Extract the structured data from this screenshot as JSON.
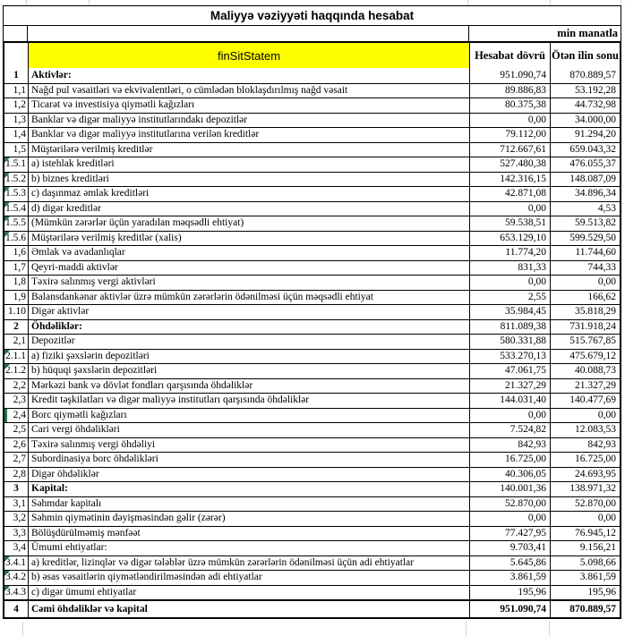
{
  "title": "Maliyyə vəziyyəti haqqında hesabat",
  "unit_note": "min manatla",
  "colors": {
    "header_fill": "#ffff00",
    "comment_marker_green": "#217346"
  },
  "table": {
    "header": {
      "name_column": "finSitStatem",
      "current_period": "Hesabat dövrü",
      "previous_period": "Ötən ilin sonu"
    },
    "rows": [
      {
        "id": "1",
        "label": "Aktivlər:",
        "current": "951.090,74",
        "previous": "870.889,57",
        "style": "section"
      },
      {
        "id": "1,1",
        "label": "Nağd pul vəsaitləri və ekvivalentləri, o cümlədən bloklaşdırılmış nağd vəsait",
        "current": "89.886,83",
        "previous": "53.192,28"
      },
      {
        "id": "1,2",
        "label": "Ticarət və investisiya qiymətli kağızları",
        "current": "80.375,38",
        "previous": "44.732,98"
      },
      {
        "id": "1,3",
        "label": "Banklar və digər maliyyə institutlarındakı depozitlər",
        "current": "0,00",
        "previous": "34.000,00"
      },
      {
        "id": "1,4",
        "label": "Banklar və digər maliyyə institutlarına verilən kreditlər",
        "current": "79.112,00",
        "previous": "91.294,20"
      },
      {
        "id": "1,5",
        "label": "Müştərilərə verilmiş kreditlər",
        "current": "712.667,61",
        "previous": "659.043,32"
      },
      {
        "id": "1.5.1",
        "label": "a) istehlak kreditləri",
        "current": "527.480,38",
        "previous": "476.055,37",
        "marker": "triangle"
      },
      {
        "id": "1.5.2",
        "label": "b) biznes kreditləri",
        "current": "142.316,15",
        "previous": "148.087,09",
        "marker": "triangle"
      },
      {
        "id": "1.5.3",
        "label": "c) daşınmaz əmlak kreditləri",
        "current": "42.871,08",
        "previous": "34.896,34",
        "marker": "triangle"
      },
      {
        "id": "1.5.4",
        "label": "d) digər kreditlər",
        "current": "0,00",
        "previous": "4,53",
        "marker": "triangle"
      },
      {
        "id": "1.5.5",
        "label": "(Mümkün zərərlər üçün yaradılan məqsədli ehtiyat)",
        "current": "59.538,51",
        "previous": "59.513,82",
        "marker": "triangle"
      },
      {
        "id": "1.5.6",
        "label": "Müştərilərə verilmiş kreditlər (xalis)",
        "current": "653.129,10",
        "previous": "599.529,50",
        "marker": "triangle"
      },
      {
        "id": "1,6",
        "label": "Əmlak və avadanlıqlar",
        "current": "11.774,20",
        "previous": "11.744,60"
      },
      {
        "id": "1,7",
        "label": "Qeyri-maddi aktivlər",
        "current": "831,33",
        "previous": "744,33"
      },
      {
        "id": "1,8",
        "label": "Təxirə salınmış vergi aktivləri",
        "current": "0,00",
        "previous": "0,00"
      },
      {
        "id": "1,9",
        "label": "Balansdankənar aktivlər üzrə mümkün zərərlərin ödənilməsi üçün məqsədli ehtiyat",
        "current": "2,55",
        "previous": "166,62"
      },
      {
        "id": "1.10",
        "label": "Digər aktivlər",
        "current": "35.984,45",
        "previous": "35.818,29"
      },
      {
        "id": "2",
        "label": "Öhdəliklər:",
        "current": "811.089,38",
        "previous": "731.918,24",
        "style": "section"
      },
      {
        "id": "2,1",
        "label": "Depozitlər",
        "current": "580.331,88",
        "previous": "515.767,85"
      },
      {
        "id": "2.1.1",
        "label": "a) fiziki şəxslərin depozitləri",
        "current": "533.270,13",
        "previous": "475.679,12",
        "marker": "triangle"
      },
      {
        "id": "2.1.2",
        "label": "b) hüquqi şəxslərin depozitləri",
        "current": "47.061,75",
        "previous": "40.088,73",
        "marker": "triangle"
      },
      {
        "id": "2,2",
        "label": "Mərkəzi bank və dövlət fondları qarşısında öhdəliklər",
        "current": "21.327,29",
        "previous": "21.327,29"
      },
      {
        "id": "2,3",
        "label": "Kredit təşkilatları və digər maliyyə institutları qarşısında öhdəliklər",
        "current": "144.031,40",
        "previous": "140.477,69"
      },
      {
        "id": "2,4",
        "label": "Borc qiymətli kağızları",
        "current": "0,00",
        "previous": "0,00",
        "marker": "bar"
      },
      {
        "id": "2,5",
        "label": "Cari vergi öhdəlikləri",
        "current": "7.524,82",
        "previous": "12.083,53"
      },
      {
        "id": "2,6",
        "label": "Təxirə salınmış vergi öhdəliyi",
        "current": "842,93",
        "previous": "842,93"
      },
      {
        "id": "2,7",
        "label": "Subordinasiya borc öhdəlikləri",
        "current": "16.725,00",
        "previous": "16.725,00"
      },
      {
        "id": "2,8",
        "label": "Digər öhdəliklər",
        "current": "40.306,05",
        "previous": "24.693,95"
      },
      {
        "id": "3",
        "label": "Kapital:",
        "current": "140.001,36",
        "previous": "138.971,32",
        "style": "section"
      },
      {
        "id": "3,1",
        "label": "Səhmdar kapitalı",
        "current": "52.870,00",
        "previous": "52.870,00"
      },
      {
        "id": "3,2",
        "label": "Səhmin qiymətinin dəyişməsindən gəlir (zərər)",
        "current": "0,00",
        "previous": "0,00"
      },
      {
        "id": "3,3",
        "label": "Bölüşdürülməmiş mənfəət",
        "current": "77.427,95",
        "previous": "76.945,12"
      },
      {
        "id": "3,4",
        "label": "Ümumi ehtiyatlar:",
        "current": "9.703,41",
        "previous": "9.156,21"
      },
      {
        "id": "3.4.1",
        "label": "a) kreditlər, lizinqlər və digər tələblər üzrə mümkün zərərlərin ödənilməsi üçün adi ehtiyatlar",
        "current": "5.645,86",
        "previous": "5.098,66",
        "marker": "triangle"
      },
      {
        "id": "3.4.2",
        "label": "b) əsas vəsaitlərin qiymətləndirilməsindən adi ehtiyatlar",
        "current": "3.861,59",
        "previous": "3.861,59",
        "marker": "triangle"
      },
      {
        "id": "3.4.3",
        "label": "c) digər ümumi ehtiyatlar",
        "current": "195,96",
        "previous": "195,96",
        "marker": "triangle"
      },
      {
        "id": "4",
        "label": "Cəmi öhdəliklər və kapital",
        "current": "951.090,74",
        "previous": "870.889,57",
        "style": "total"
      }
    ]
  }
}
